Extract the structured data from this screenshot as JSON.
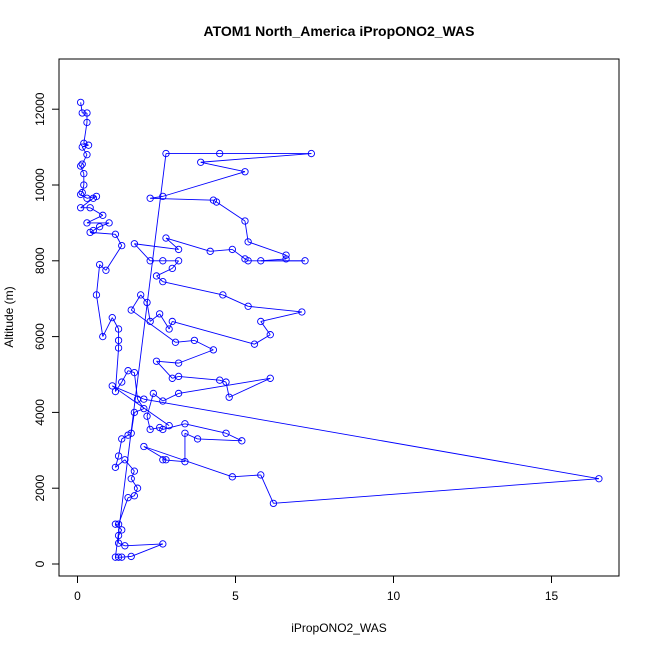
{
  "chart_data": {
    "type": "line",
    "title": "ATOM1 North_America iPropONO2_WAS",
    "xlabel": "iPropONO2_WAS",
    "ylabel": "Altitude (m)",
    "xlim": [
      0,
      17
    ],
    "ylim": [
      0,
      12200
    ],
    "x_ticks": [
      0,
      5,
      10,
      15
    ],
    "y_ticks": [
      0,
      2000,
      4000,
      6000,
      8000,
      10000,
      12000
    ],
    "grid": false,
    "legend": "none",
    "series_color": "#0000ff",
    "markers": "open-circle",
    "points": [
      [
        0.1,
        12180
      ],
      [
        0.15,
        11900
      ],
      [
        0.3,
        11900
      ],
      [
        0.3,
        11650
      ],
      [
        0.2,
        11100
      ],
      [
        0.35,
        11050
      ],
      [
        0.15,
        11000
      ],
      [
        0.3,
        10800
      ],
      [
        0.15,
        10550
      ],
      [
        0.1,
        10500
      ],
      [
        0.2,
        10300
      ],
      [
        0.2,
        10000
      ],
      [
        0.15,
        9800
      ],
      [
        0.1,
        9750
      ],
      [
        0.3,
        9650
      ],
      [
        0.6,
        9700
      ],
      [
        0.5,
        9650
      ],
      [
        0.1,
        9400
      ],
      [
        0.4,
        9400
      ],
      [
        0.8,
        9200
      ],
      [
        0.3,
        9000
      ],
      [
        1.0,
        9000
      ],
      [
        0.7,
        8900
      ],
      [
        0.5,
        8800
      ],
      [
        0.4,
        8750
      ],
      [
        1.2,
        8700
      ],
      [
        1.4,
        8400
      ],
      [
        0.9,
        7750
      ],
      [
        0.7,
        7900
      ],
      [
        0.6,
        7100
      ],
      [
        0.8,
        6000
      ],
      [
        1.1,
        6500
      ],
      [
        1.3,
        6200
      ],
      [
        1.3,
        5900
      ],
      [
        1.3,
        5700
      ],
      [
        1.2,
        4550
      ],
      [
        1.4,
        4800
      ],
      [
        1.6,
        5100
      ],
      [
        1.8,
        5050
      ],
      [
        1.9,
        4350
      ],
      [
        2.1,
        4100
      ],
      [
        1.8,
        4000
      ],
      [
        1.7,
        3450
      ],
      [
        1.6,
        3400
      ],
      [
        1.4,
        3300
      ],
      [
        1.3,
        2850
      ],
      [
        1.2,
        2550
      ],
      [
        1.5,
        2750
      ],
      [
        1.8,
        2450
      ],
      [
        1.7,
        2250
      ],
      [
        1.9,
        2000
      ],
      [
        1.8,
        1800
      ],
      [
        1.6,
        1750
      ],
      [
        1.3,
        1050
      ],
      [
        1.2,
        1050
      ],
      [
        1.4,
        900
      ],
      [
        1.3,
        750
      ],
      [
        1.3,
        550
      ],
      [
        1.5,
        480
      ],
      [
        2.7,
        530
      ],
      [
        1.7,
        200
      ],
      [
        1.4,
        180
      ],
      [
        1.3,
        180
      ],
      [
        1.2,
        180
      ],
      [
        2.8,
        10830
      ],
      [
        4.5,
        10830
      ],
      [
        7.4,
        10830
      ],
      [
        3.9,
        10600
      ],
      [
        5.3,
        10350
      ],
      [
        2.7,
        9700
      ],
      [
        2.3,
        9650
      ],
      [
        4.3,
        9600
      ],
      [
        4.4,
        9550
      ],
      [
        5.3,
        9050
      ],
      [
        5.4,
        8500
      ],
      [
        6.6,
        8150
      ],
      [
        6.6,
        8050
      ],
      [
        5.8,
        8000
      ],
      [
        7.2,
        8000
      ],
      [
        5.4,
        8000
      ],
      [
        5.3,
        8050
      ],
      [
        4.9,
        8300
      ],
      [
        4.2,
        8250
      ],
      [
        2.8,
        8600
      ],
      [
        3.2,
        8300
      ],
      [
        1.8,
        8450
      ],
      [
        2.3,
        8000
      ],
      [
        2.7,
        8000
      ],
      [
        3.2,
        8000
      ],
      [
        3.0,
        7800
      ],
      [
        2.5,
        7600
      ],
      [
        2.7,
        7450
      ],
      [
        4.6,
        7100
      ],
      [
        5.4,
        6800
      ],
      [
        7.1,
        6650
      ],
      [
        5.8,
        6400
      ],
      [
        6.1,
        6050
      ],
      [
        5.6,
        5800
      ],
      [
        3.0,
        6400
      ],
      [
        2.9,
        6200
      ],
      [
        2.6,
        6600
      ],
      [
        2.3,
        6400
      ],
      [
        2.2,
        6900
      ],
      [
        2.0,
        7100
      ],
      [
        1.7,
        6700
      ],
      [
        3.1,
        5850
      ],
      [
        3.7,
        5900
      ],
      [
        4.3,
        5650
      ],
      [
        3.2,
        5300
      ],
      [
        2.5,
        5350
      ],
      [
        3.0,
        4900
      ],
      [
        3.2,
        4950
      ],
      [
        4.5,
        4850
      ],
      [
        4.7,
        4800
      ],
      [
        4.8,
        4400
      ],
      [
        6.1,
        4900
      ],
      [
        3.2,
        4500
      ],
      [
        2.7,
        4300
      ],
      [
        2.4,
        4500
      ],
      [
        2.2,
        3900
      ],
      [
        2.3,
        3550
      ],
      [
        2.6,
        3600
      ],
      [
        2.7,
        3550
      ],
      [
        3.4,
        3700
      ],
      [
        4.7,
        3450
      ],
      [
        5.2,
        3250
      ],
      [
        3.8,
        3300
      ],
      [
        3.4,
        3450
      ],
      [
        3.4,
        2700
      ],
      [
        2.7,
        2750
      ],
      [
        2.8,
        2750
      ],
      [
        2.1,
        3100
      ],
      [
        4.9,
        2300
      ],
      [
        5.8,
        2350
      ],
      [
        6.2,
        1600
      ],
      [
        16.5,
        2250
      ],
      [
        2.1,
        4350
      ],
      [
        1.1,
        4700
      ],
      [
        2.9,
        3650
      ]
    ]
  }
}
